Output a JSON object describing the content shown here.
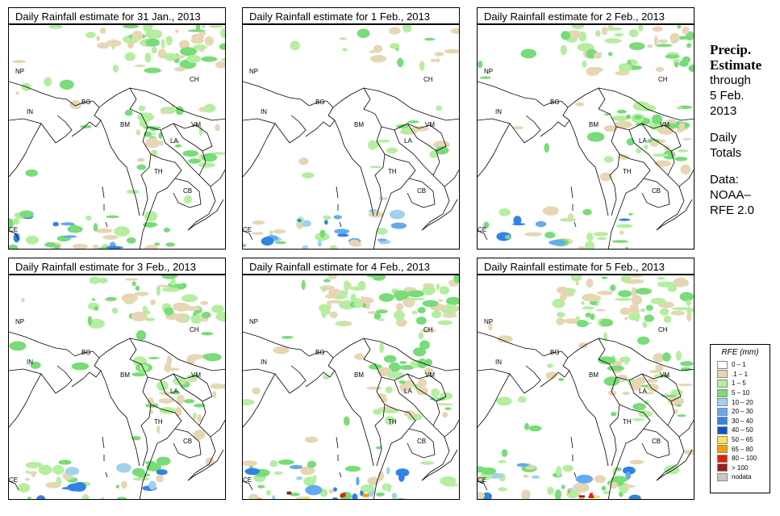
{
  "panels": [
    {
      "title": "Daily Rainfall estimate for  31 Jan., 2013",
      "wet_level": "moderate"
    },
    {
      "title": "Daily Rainfall estimate for  1 Feb., 2013",
      "wet_level": "light"
    },
    {
      "title": "Daily Rainfall estimate for  2 Feb., 2013",
      "wet_level": "moderate"
    },
    {
      "title": "Daily Rainfall estimate for  3 Feb., 2013",
      "wet_level": "moderate"
    },
    {
      "title": "Daily Rainfall estimate for  4 Feb., 2013",
      "wet_level": "heavy"
    },
    {
      "title": "Daily Rainfall estimate for  5 Feb., 2013",
      "wet_level": "heavy"
    }
  ],
  "map_labels": {
    "np": "NP",
    "ind": "IN",
    "bg": "BG",
    "bm": "BM",
    "ch": "CH",
    "vm": "VM",
    "la": "LA",
    "th": "TH",
    "cb": "CB",
    "ce": "CE"
  },
  "side": {
    "title1": "Precip.",
    "title2": "Estimate",
    "through": "through",
    "date1": "5 Feb.",
    "date2": "2013",
    "daily": "Daily",
    "totals": "Totals",
    "data": "Data:",
    "source1": "NOAA–",
    "source2": "RFE 2.0"
  },
  "legend": {
    "title": "RFE (mm)",
    "items": [
      {
        "label": "0 – 1",
        "color": "#ffffff"
      },
      {
        "label": ".1 – 1",
        "color": "#e6d6b4"
      },
      {
        "label": "1 – 5",
        "color": "#b4eea0"
      },
      {
        "label": "5 – 10",
        "color": "#78dc78"
      },
      {
        "label": "10 – 20",
        "color": "#a0d2f0"
      },
      {
        "label": "20 – 30",
        "color": "#64aaf0"
      },
      {
        "label": "30 – 40",
        "color": "#3282e6"
      },
      {
        "label": "40 – 50",
        "color": "#1450c8"
      },
      {
        "label": "50 – 65",
        "color": "#fae65a"
      },
      {
        "label": "65 – 80",
        "color": "#f5a000"
      },
      {
        "label": "80 – 100",
        "color": "#e61e00"
      },
      {
        "label": "> 100",
        "color": "#961e1e"
      },
      {
        "label": "nodata",
        "color": "#c8c8c8"
      }
    ]
  }
}
